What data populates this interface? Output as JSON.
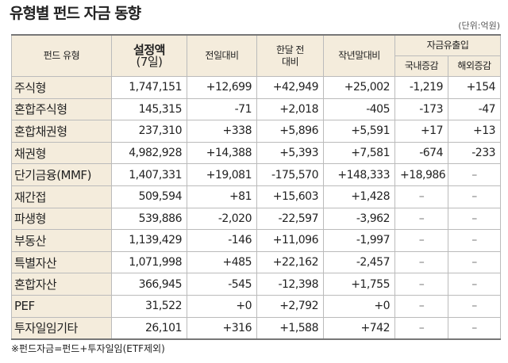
{
  "title": "유형별 펀드 자금 동향",
  "unit": "(단위:억원)",
  "table": {
    "header": {
      "type": "펀드 유형",
      "amount": [
        "설정액",
        "(7일)"
      ],
      "day": "전일대비",
      "month": [
        "한달 전",
        "대비"
      ],
      "year": "작년말대비",
      "flow": "자금유출입",
      "domestic": "국내증감",
      "overseas": "해외증감"
    },
    "rows": [
      [
        "주식형",
        "1,747,151",
        "+12,699",
        "+42,949",
        "+25,002",
        "-1,219",
        "+154"
      ],
      [
        "혼합주식형",
        "145,315",
        "-71",
        "+2,018",
        "-405",
        "-173",
        "-47"
      ],
      [
        "혼합채권형",
        "237,310",
        "+338",
        "+5,896",
        "+5,591",
        "+17",
        "+13"
      ],
      [
        "채권형",
        "4,982,928",
        "+14,388",
        "+5,393",
        "+7,581",
        "-674",
        "-233"
      ],
      [
        "단기금융(MMF)",
        "1,407,331",
        "+19,081",
        "-175,570",
        "+148,333",
        "+18,986",
        "–"
      ],
      [
        "재간접",
        "509,594",
        "+81",
        "+15,603",
        "+1,428",
        "–",
        "–"
      ],
      [
        "파생형",
        "539,886",
        "-2,020",
        "-22,597",
        "-3,962",
        "–",
        "–"
      ],
      [
        "부동산",
        "1,139,429",
        "-146",
        "+11,096",
        "-1,997",
        "–",
        "–"
      ],
      [
        "특별자산",
        "1,071,998",
        "+485",
        "+22,162",
        "-2,457",
        "–",
        "–"
      ],
      [
        "혼합자산",
        "366,945",
        "-545",
        "-12,398",
        "+1,755",
        "–",
        "–"
      ],
      [
        "PEF",
        "31,522",
        "+0",
        "+2,792",
        "+0",
        "–",
        "–"
      ],
      [
        "투자일임기타",
        "26,101",
        "+316",
        "+1,588",
        "+742",
        "–",
        "–"
      ]
    ]
  },
  "footnote": "※펀드자금=펀드+투자일임(ETF제외)"
}
